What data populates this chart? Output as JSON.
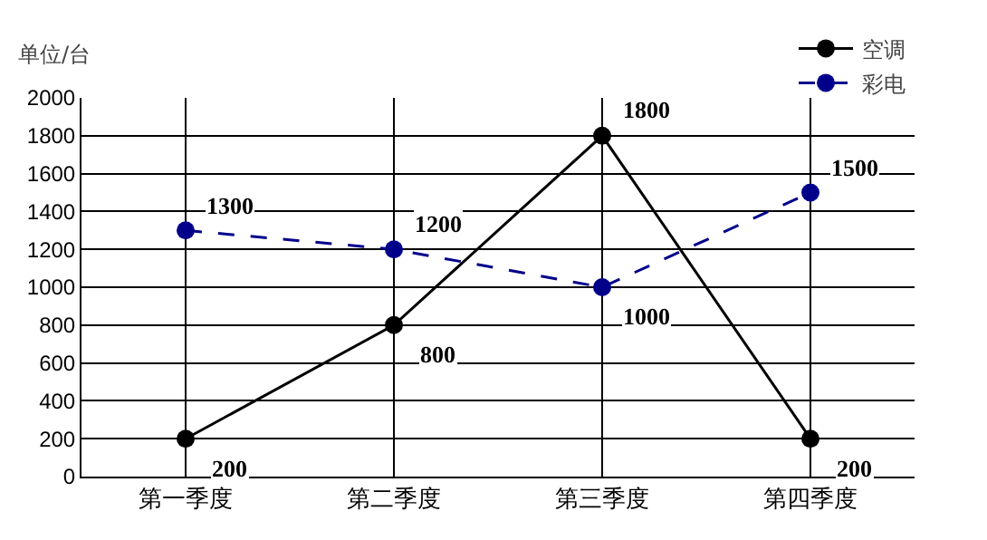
{
  "chart_data": {
    "type": "line",
    "ylabel": "单位/台",
    "categories": [
      "第一季度",
      "第二季度",
      "第三季度",
      "第四季度"
    ],
    "series": [
      {
        "name": "空调",
        "color": "#000000",
        "line_style": "solid",
        "values": [
          200,
          800,
          1800,
          200
        ]
      },
      {
        "name": "彩电",
        "color": "#00008b",
        "line_style": "dashed",
        "values": [
          1300,
          1200,
          1000,
          1500
        ]
      }
    ],
    "ylim": [
      0,
      2000
    ],
    "yticks": [
      0,
      200,
      400,
      600,
      800,
      1000,
      1200,
      1400,
      1600,
      1800,
      2000
    ],
    "grid": true,
    "legend": "top right",
    "marker": "circle",
    "data_labels": true
  }
}
